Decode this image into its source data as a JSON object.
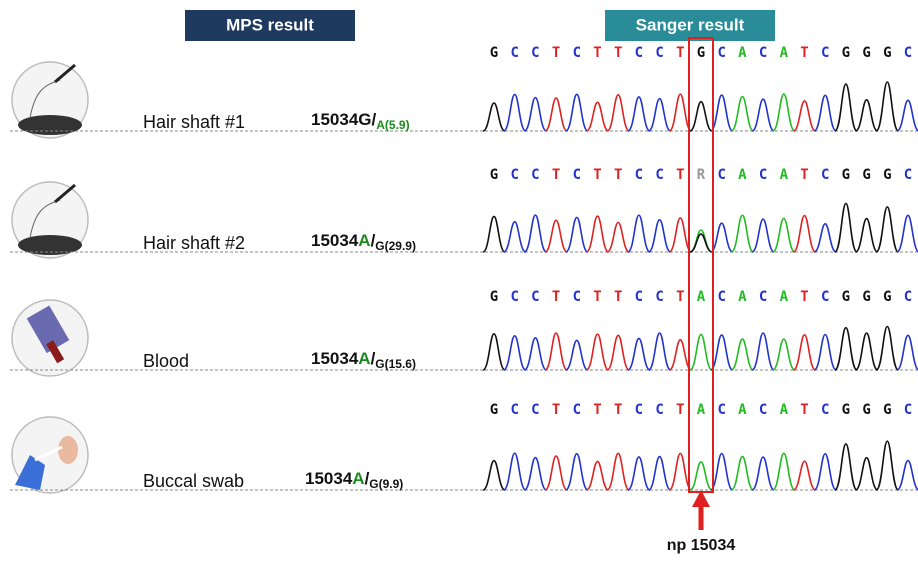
{
  "header": {
    "mps": "MPS result",
    "sanger": "Sanger result"
  },
  "base_colors": {
    "G": "#111111",
    "C": "#2233cc",
    "T": "#dd2222",
    "A": "#22bb22",
    "R": "#999999"
  },
  "highlight_color": "#e02020",
  "rows": [
    {
      "sample": "Hair shaft #1",
      "position": "15034",
      "major": "G",
      "separator": "/",
      "minor": "A(5.9)",
      "major_color": "#111111",
      "minor_color": "#1a8a1a",
      "sequence": [
        "G",
        "C",
        "C",
        "T",
        "C",
        "T",
        "T",
        "C",
        "C",
        "T",
        "G",
        "C",
        "A",
        "C",
        "A",
        "T",
        "C",
        "G",
        "G",
        "G",
        "C"
      ]
    },
    {
      "sample": "Hair shaft #2",
      "position": "15034",
      "major": "A",
      "separator": "/",
      "minor": "G(29.9)",
      "major_color": "#1a8a1a",
      "minor_color": "#111111",
      "sequence": [
        "G",
        "C",
        "C",
        "T",
        "C",
        "T",
        "T",
        "C",
        "C",
        "T",
        "R",
        "C",
        "A",
        "C",
        "A",
        "T",
        "C",
        "G",
        "G",
        "G",
        "C"
      ]
    },
    {
      "sample": "Blood",
      "position": "15034",
      "major": "A",
      "separator": "/",
      "minor": "G(15.6)",
      "major_color": "#1a8a1a",
      "minor_color": "#111111",
      "sequence": [
        "G",
        "C",
        "C",
        "T",
        "C",
        "T",
        "T",
        "C",
        "C",
        "T",
        "A",
        "C",
        "A",
        "C",
        "A",
        "T",
        "C",
        "G",
        "G",
        "G",
        "C"
      ]
    },
    {
      "sample": "Buccal swab",
      "position": "15034",
      "major": "A",
      "separator": "/",
      "minor": "G(9.9)",
      "major_color": "#1a8a1a",
      "minor_color": "#111111",
      "sequence": [
        "G",
        "C",
        "C",
        "T",
        "C",
        "T",
        "T",
        "C",
        "C",
        "T",
        "A",
        "C",
        "A",
        "C",
        "A",
        "T",
        "C",
        "G",
        "G",
        "G",
        "C"
      ]
    }
  ],
  "marker": {
    "label": "np 15034",
    "column": 10
  }
}
